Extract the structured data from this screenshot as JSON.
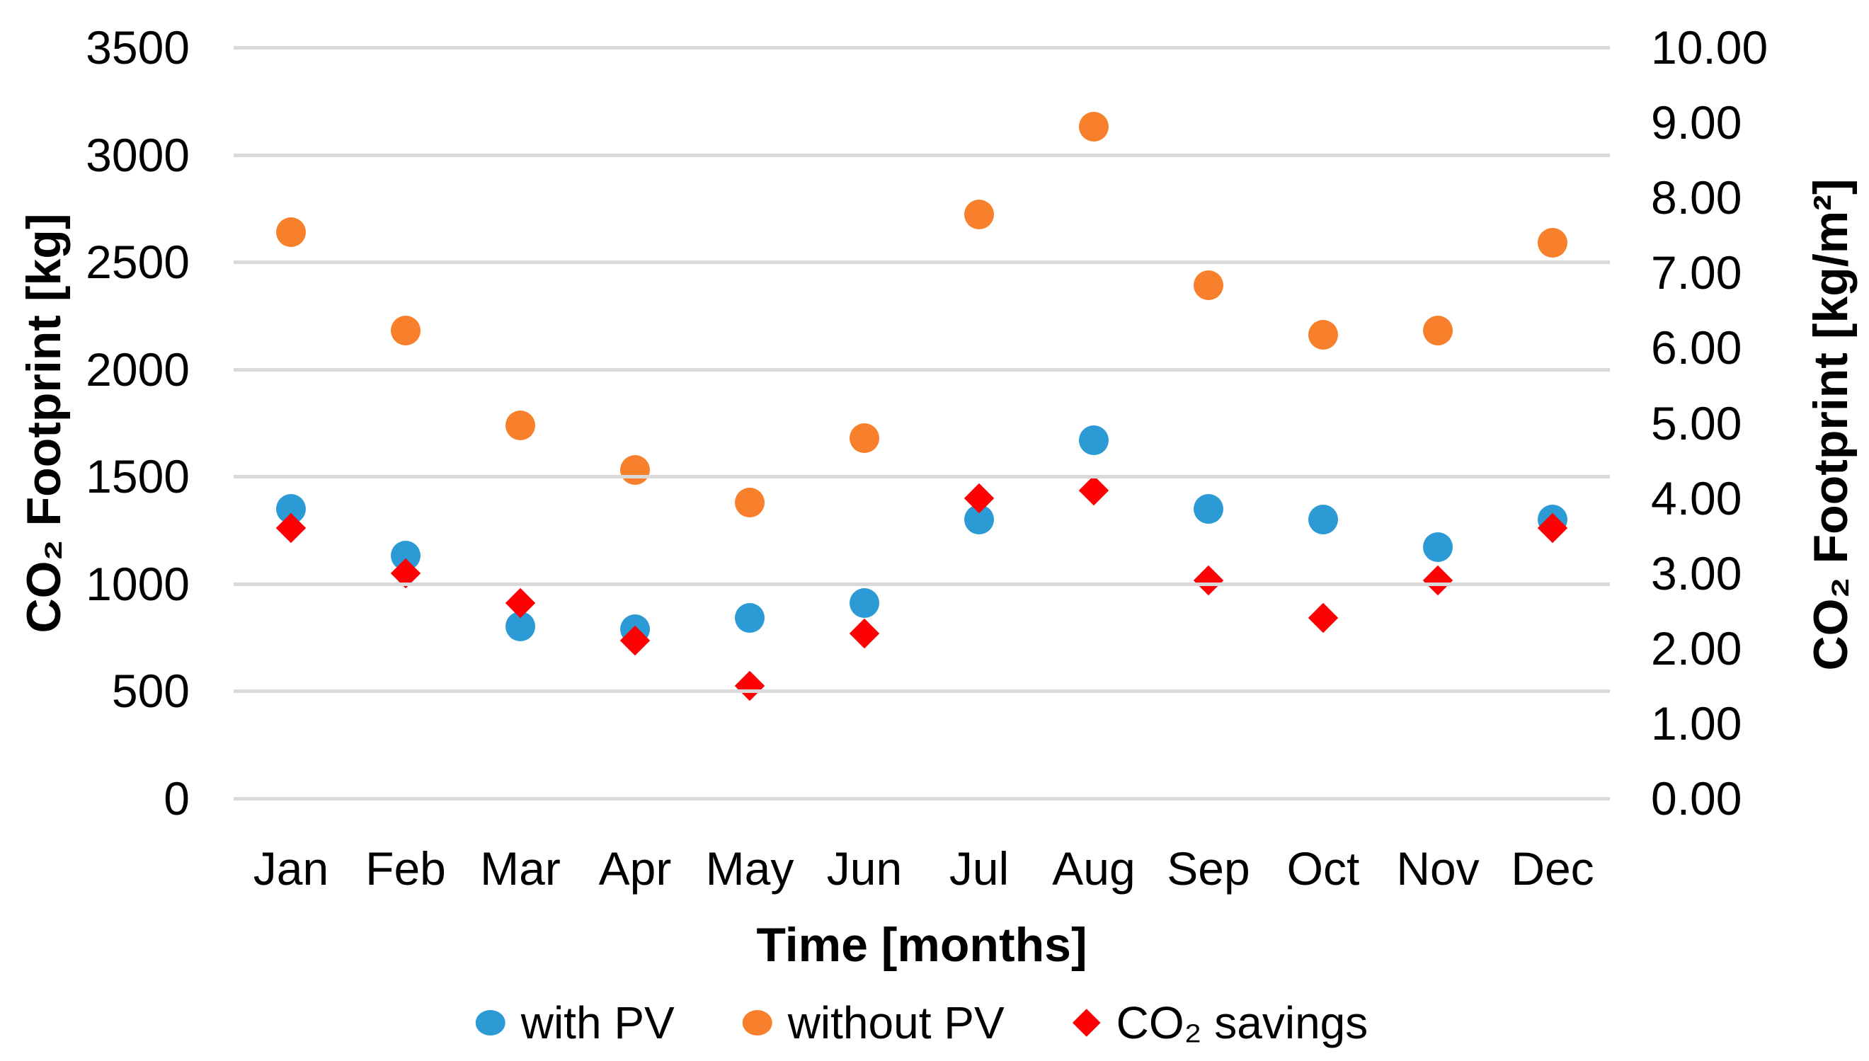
{
  "chart_data": {
    "type": "scatter",
    "xlabel": "Time [months]",
    "ylabel_left": "CO₂ Footprint [kg]",
    "ylabel_right": "CO₂ Footprint [kg/m²]",
    "categories": [
      "Jan",
      "Feb",
      "Mar",
      "Apr",
      "May",
      "Jun",
      "Jul",
      "Aug",
      "Sep",
      "Oct",
      "Nov",
      "Dec"
    ],
    "left_axis": {
      "min": 0,
      "max": 3500,
      "step": 500,
      "tick_labels": [
        "3500",
        "3000",
        "2500",
        "2000",
        "1500",
        "1000",
        "500",
        "0"
      ]
    },
    "right_axis": {
      "min": 0,
      "max": 10,
      "step": 1,
      "tick_labels": [
        "10.00",
        "9.00",
        "8.00",
        "7.00",
        "6.00",
        "5.00",
        "4.00",
        "3.00",
        "2.00",
        "1.00",
        "0.00"
      ]
    },
    "grid": true,
    "legend_position": "bottom",
    "series": [
      {
        "name": "with PV",
        "axis": "left",
        "marker": "circle",
        "color": "#2b9ad5",
        "values": [
          1350,
          1130,
          800,
          790,
          840,
          910,
          1300,
          1670,
          1350,
          1300,
          1170,
          1300
        ]
      },
      {
        "name": "without PV",
        "axis": "left",
        "marker": "circle",
        "color": "#f8802c",
        "values": [
          2640,
          2180,
          1740,
          1530,
          1380,
          1680,
          2720,
          3130,
          2390,
          2160,
          2180,
          2590
        ]
      },
      {
        "name": "CO₂ savings",
        "axis": "right",
        "marker": "diamond",
        "color": "#fc0204",
        "values": [
          3.6,
          3.0,
          2.6,
          2.1,
          1.5,
          2.2,
          4.0,
          4.1,
          2.9,
          2.4,
          2.9,
          3.6
        ]
      }
    ],
    "colors": {
      "gridline": "#d9d9d9",
      "text": "#000000"
    }
  }
}
